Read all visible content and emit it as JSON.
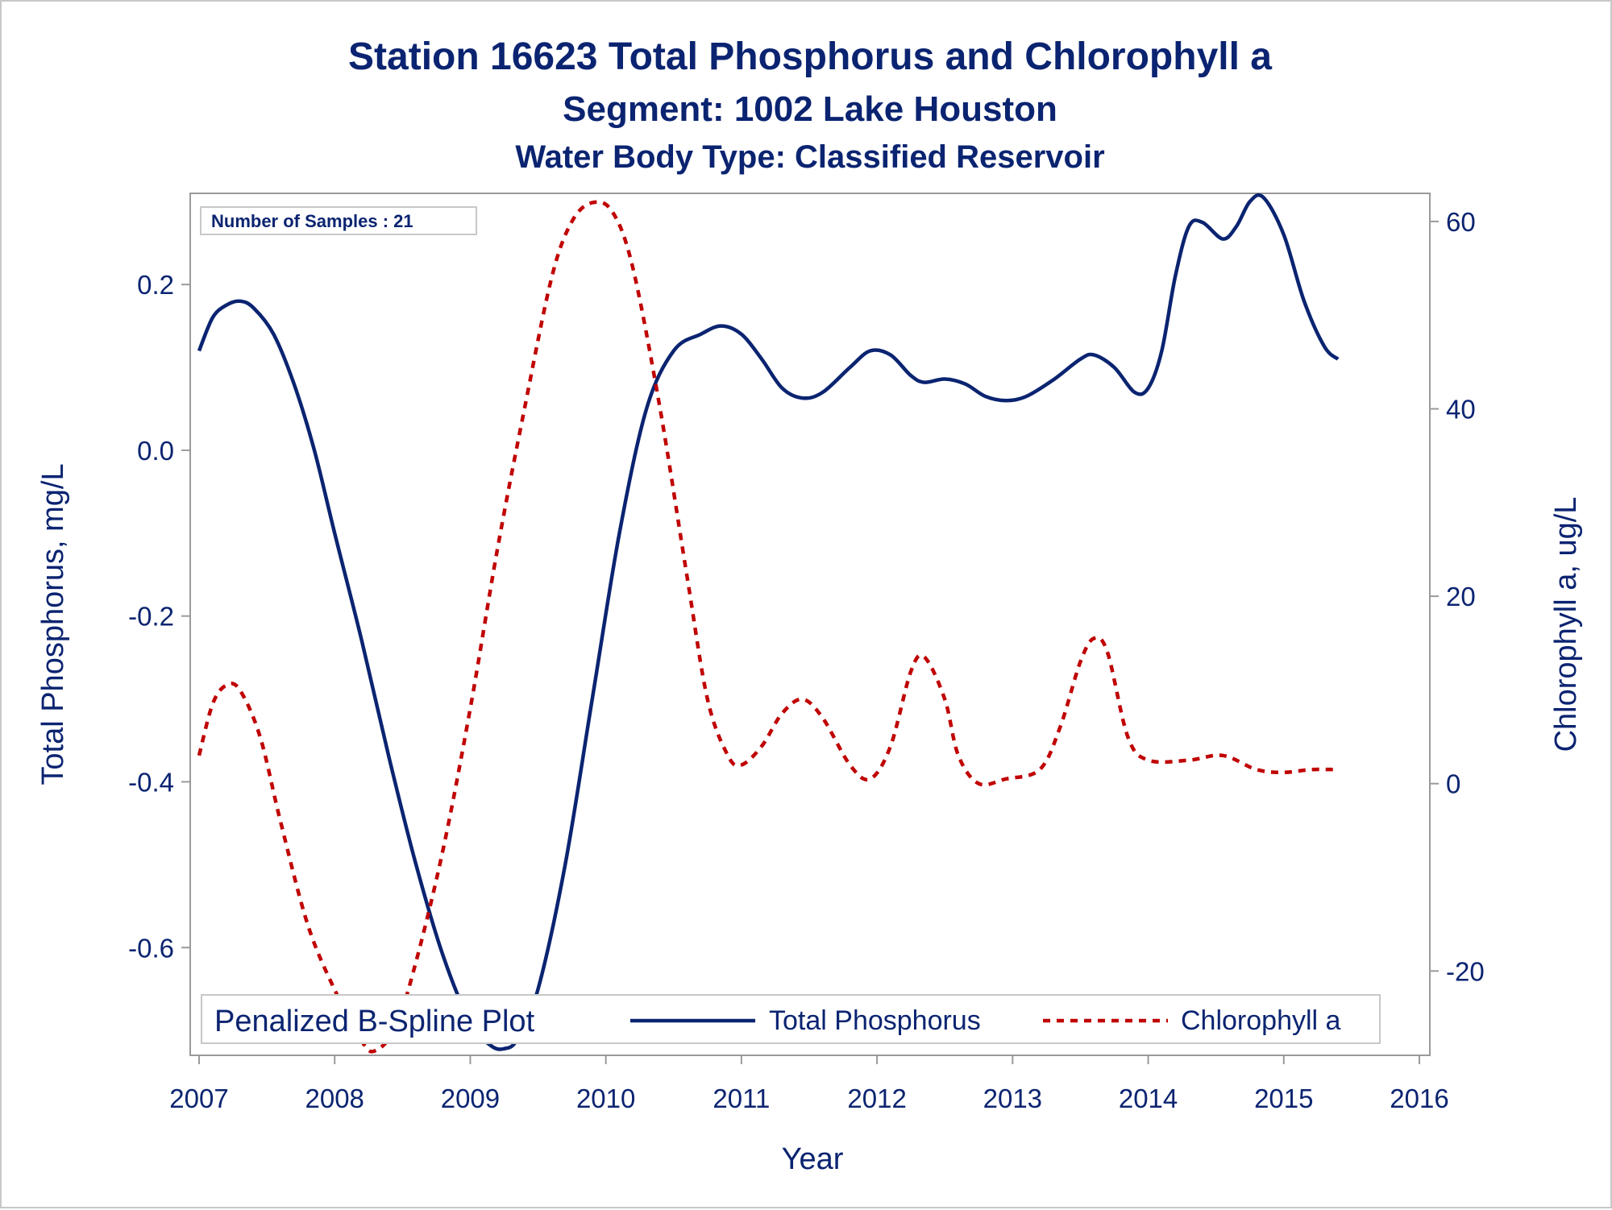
{
  "chart_data": {
    "type": "line",
    "title": "Station 16623  Total Phosphorus and Chlorophyll a",
    "subtitle": "Segment: 1002  Lake Houston",
    "subtitle2": "Water Body Type: Classified Reservoir",
    "inset_text": "Number of Samples : 21",
    "xlabel": "Year",
    "ylabel": "Total Phosphorus, mg/L",
    "y2label": "Chlorophyll a, ug/L",
    "xlim": [
      2007,
      2016
    ],
    "ylim": [
      -0.73,
      0.31
    ],
    "y2lim": [
      -29,
      63
    ],
    "xticks": [
      "2007",
      "2008",
      "2009",
      "2010",
      "2011",
      "2012",
      "2013",
      "2014",
      "2015",
      "2016"
    ],
    "yticks": [
      "0.2",
      "0.0",
      "-0.2",
      "-0.4",
      "-0.6"
    ],
    "y2ticks": [
      "60",
      "40",
      "20",
      "0",
      "-20"
    ],
    "legend": {
      "title": "Penalized B-Spline Plot",
      "position": "bottom-left inside",
      "entries": [
        "Total Phosphorus",
        "Chlorophyll a"
      ]
    },
    "series": [
      {
        "name": "Total Phosphorus",
        "axis": "left",
        "color": "#0b2471",
        "style": "solid",
        "points": [
          [
            2007.0,
            0.12
          ],
          [
            2007.1,
            0.16
          ],
          [
            2007.2,
            0.175
          ],
          [
            2007.3,
            0.18
          ],
          [
            2007.4,
            0.172
          ],
          [
            2007.55,
            0.14
          ],
          [
            2007.7,
            0.08
          ],
          [
            2007.85,
            0.0
          ],
          [
            2008.0,
            -0.1
          ],
          [
            2008.2,
            -0.23
          ],
          [
            2008.4,
            -0.37
          ],
          [
            2008.6,
            -0.5
          ],
          [
            2008.8,
            -0.61
          ],
          [
            2009.0,
            -0.69
          ],
          [
            2009.15,
            -0.718
          ],
          [
            2009.25,
            -0.722
          ],
          [
            2009.35,
            -0.71
          ],
          [
            2009.5,
            -0.65
          ],
          [
            2009.7,
            -0.5
          ],
          [
            2009.9,
            -0.3
          ],
          [
            2010.1,
            -0.1
          ],
          [
            2010.3,
            0.05
          ],
          [
            2010.5,
            0.12
          ],
          [
            2010.7,
            0.14
          ],
          [
            2010.85,
            0.15
          ],
          [
            2011.0,
            0.14
          ],
          [
            2011.15,
            0.11
          ],
          [
            2011.3,
            0.075
          ],
          [
            2011.45,
            0.063
          ],
          [
            2011.6,
            0.07
          ],
          [
            2011.8,
            0.1
          ],
          [
            2011.95,
            0.12
          ],
          [
            2012.1,
            0.115
          ],
          [
            2012.25,
            0.09
          ],
          [
            2012.35,
            0.082
          ],
          [
            2012.5,
            0.086
          ],
          [
            2012.65,
            0.08
          ],
          [
            2012.8,
            0.065
          ],
          [
            2012.95,
            0.06
          ],
          [
            2013.1,
            0.065
          ],
          [
            2013.3,
            0.085
          ],
          [
            2013.5,
            0.11
          ],
          [
            2013.6,
            0.115
          ],
          [
            2013.75,
            0.1
          ],
          [
            2013.9,
            0.07
          ],
          [
            2014.0,
            0.075
          ],
          [
            2014.1,
            0.12
          ],
          [
            2014.2,
            0.21
          ],
          [
            2014.3,
            0.27
          ],
          [
            2014.4,
            0.275
          ],
          [
            2014.55,
            0.255
          ],
          [
            2014.65,
            0.27
          ],
          [
            2014.75,
            0.3
          ],
          [
            2014.85,
            0.305
          ],
          [
            2015.0,
            0.26
          ],
          [
            2015.15,
            0.18
          ],
          [
            2015.3,
            0.125
          ],
          [
            2015.4,
            0.11
          ]
        ]
      },
      {
        "name": "Chlorophyll a",
        "axis": "right",
        "color": "#c00000",
        "style": "dashed",
        "points": [
          [
            2007.0,
            3
          ],
          [
            2007.1,
            8.5
          ],
          [
            2007.2,
            10.5
          ],
          [
            2007.3,
            10
          ],
          [
            2007.45,
            5
          ],
          [
            2007.6,
            -4
          ],
          [
            2007.8,
            -15
          ],
          [
            2008.0,
            -22
          ],
          [
            2008.2,
            -27.5
          ],
          [
            2008.3,
            -28.5
          ],
          [
            2008.45,
            -26
          ],
          [
            2008.6,
            -19
          ],
          [
            2008.8,
            -7
          ],
          [
            2009.0,
            8
          ],
          [
            2009.2,
            25
          ],
          [
            2009.4,
            40
          ],
          [
            2009.6,
            54
          ],
          [
            2009.75,
            60
          ],
          [
            2009.9,
            62
          ],
          [
            2010.05,
            61
          ],
          [
            2010.2,
            55
          ],
          [
            2010.4,
            40
          ],
          [
            2010.6,
            22
          ],
          [
            2010.75,
            9
          ],
          [
            2010.9,
            3
          ],
          [
            2011.0,
            2
          ],
          [
            2011.15,
            4
          ],
          [
            2011.3,
            7.5
          ],
          [
            2011.45,
            9
          ],
          [
            2011.6,
            7
          ],
          [
            2011.8,
            2
          ],
          [
            2011.95,
            0.5
          ],
          [
            2012.1,
            4
          ],
          [
            2012.25,
            12
          ],
          [
            2012.35,
            13.5
          ],
          [
            2012.5,
            9
          ],
          [
            2012.6,
            3
          ],
          [
            2012.75,
            0
          ],
          [
            2012.95,
            0.5
          ],
          [
            2013.2,
            1.5
          ],
          [
            2013.35,
            6
          ],
          [
            2013.5,
            13
          ],
          [
            2013.6,
            15.5
          ],
          [
            2013.7,
            14
          ],
          [
            2013.85,
            5
          ],
          [
            2014.0,
            2.5
          ],
          [
            2014.3,
            2.5
          ],
          [
            2014.55,
            3
          ],
          [
            2014.8,
            1.5
          ],
          [
            2015.0,
            1.2
          ],
          [
            2015.2,
            1.5
          ],
          [
            2015.4,
            1.5
          ]
        ]
      }
    ]
  }
}
